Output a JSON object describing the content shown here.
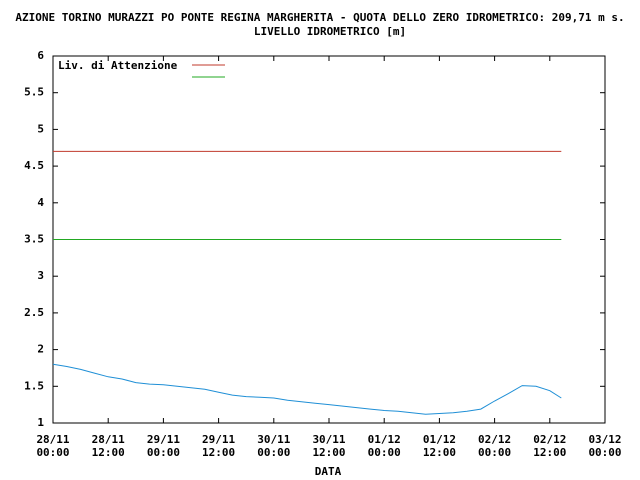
{
  "chart_data": {
    "type": "line",
    "title": "AZIONE TORINO MURAZZI PO PONTE REGINA MARGHERITA - QUOTA DELLO ZERO IDROMETRICO: 209,71 m s.",
    "subtitle": "LIVELLO IDROMETRICO [m]",
    "x_label": "DATA",
    "xlim": [
      "28/11 00:00",
      "03/12 00:00"
    ],
    "xticks": [
      [
        "28/11",
        "00:00"
      ],
      [
        "28/11",
        "12:00"
      ],
      [
        "29/11",
        "00:00"
      ],
      [
        "29/11",
        "12:00"
      ],
      [
        "30/11",
        "00:00"
      ],
      [
        "30/11",
        "12:00"
      ],
      [
        "01/12",
        "00:00"
      ],
      [
        "01/12",
        "12:00"
      ],
      [
        "02/12",
        "00:00"
      ],
      [
        "02/12",
        "12:00"
      ],
      [
        "03/12",
        "00:00"
      ]
    ],
    "ylim": [
      1,
      6
    ],
    "yticks": [
      1,
      1.5,
      2,
      2.5,
      3,
      3.5,
      4,
      4.5,
      5,
      5.5,
      6
    ],
    "legend": "top-left",
    "series": [
      {
        "name": "Liv. di Attenzione",
        "color": "#c0392b",
        "x": [
          "28/11 00:00",
          "02/12 14:30"
        ],
        "values": [
          4.7,
          4.7
        ]
      },
      {
        "color": "#22a822",
        "x": [
          "28/11 00:00",
          "02/12 14:30"
        ],
        "values": [
          3.5,
          3.5
        ]
      },
      {
        "color": "#1f8fd6",
        "x": [
          "28/11 00:00",
          "28/11 03:00",
          "28/11 06:00",
          "28/11 09:00",
          "28/11 12:00",
          "28/11 15:00",
          "28/11 18:00",
          "28/11 21:00",
          "29/11 00:00",
          "29/11 03:00",
          "29/11 06:00",
          "29/11 09:00",
          "29/11 12:00",
          "29/11 15:00",
          "29/11 18:00",
          "29/11 21:00",
          "30/11 00:00",
          "30/11 03:00",
          "30/11 06:00",
          "30/11 09:00",
          "30/11 12:00",
          "30/11 15:00",
          "30/11 18:00",
          "30/11 21:00",
          "01/12 00:00",
          "01/12 03:00",
          "01/12 06:00",
          "01/12 09:00",
          "01/12 12:00",
          "01/12 15:00",
          "01/12 18:00",
          "01/12 21:00",
          "02/12 00:00",
          "02/12 03:00",
          "02/12 06:00",
          "02/12 09:00",
          "02/12 12:00",
          "02/12 14:30"
        ],
        "values": [
          1.8,
          1.77,
          1.73,
          1.68,
          1.63,
          1.6,
          1.55,
          1.53,
          1.52,
          1.5,
          1.48,
          1.46,
          1.42,
          1.38,
          1.36,
          1.35,
          1.34,
          1.31,
          1.29,
          1.27,
          1.25,
          1.23,
          1.21,
          1.19,
          1.17,
          1.16,
          1.14,
          1.12,
          1.13,
          1.14,
          1.16,
          1.19,
          1.3,
          1.4,
          1.51,
          1.5,
          1.44,
          1.34
        ]
      }
    ]
  }
}
